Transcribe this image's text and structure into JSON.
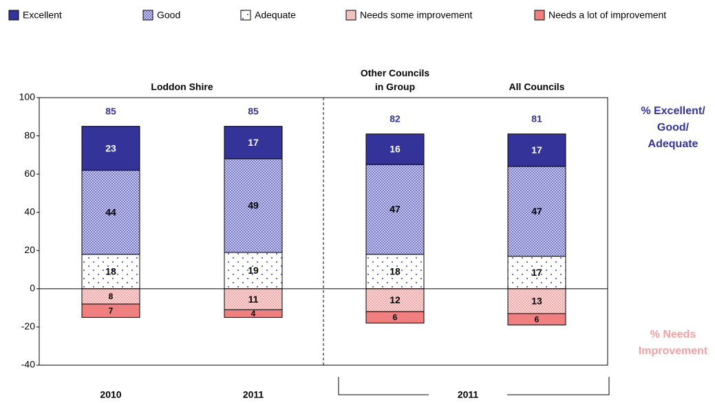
{
  "chart_data": {
    "type": "diverging-stacked-bar",
    "series": [
      {
        "name": "Excellent",
        "color": "#333399",
        "pattern": "solid",
        "text_color": "#ffffff",
        "values": [
          23,
          17,
          16,
          17
        ]
      },
      {
        "name": "Good",
        "color": "#9999dd",
        "pattern": "checker",
        "values": [
          44,
          49,
          47,
          47
        ]
      },
      {
        "name": "Adequate",
        "color": "#6666cc",
        "pattern": "dots",
        "values": [
          18,
          19,
          18,
          17
        ]
      },
      {
        "name": "Needs some improvement",
        "color": "#f4a8a8",
        "pattern": "checker",
        "negative": true,
        "values": [
          8,
          11,
          12,
          13
        ]
      },
      {
        "name": "Needs a lot of improvement",
        "color": "#f08080",
        "pattern": "solid",
        "negative": true,
        "values": [
          7,
          4,
          6,
          6
        ]
      }
    ],
    "totals": {
      "color": "#333399",
      "values": [
        85,
        85,
        82,
        81
      ]
    },
    "top_labels": [
      {
        "label": "Loddon Shire",
        "categories": [
          0,
          1
        ]
      },
      {
        "label": "Other Councils in Group",
        "categories": [
          2
        ]
      },
      {
        "label": "All Councils",
        "categories": [
          3
        ]
      }
    ],
    "bottom_labels": [
      {
        "label": "2010",
        "categories": [
          0
        ]
      },
      {
        "label": "2011",
        "categories": [
          1
        ]
      },
      {
        "label": "2011",
        "categories": [
          2,
          3
        ],
        "bracket": true
      }
    ],
    "annotations": [
      {
        "text": "% Excellent/ Good/ Adequate",
        "color": "#333399"
      },
      {
        "text": "% Needs Improvement",
        "color": "#f4a0a0"
      }
    ],
    "ylim": [
      -40,
      100
    ],
    "yticks": [
      -40,
      -20,
      0,
      20,
      40,
      60,
      80,
      100
    ]
  }
}
